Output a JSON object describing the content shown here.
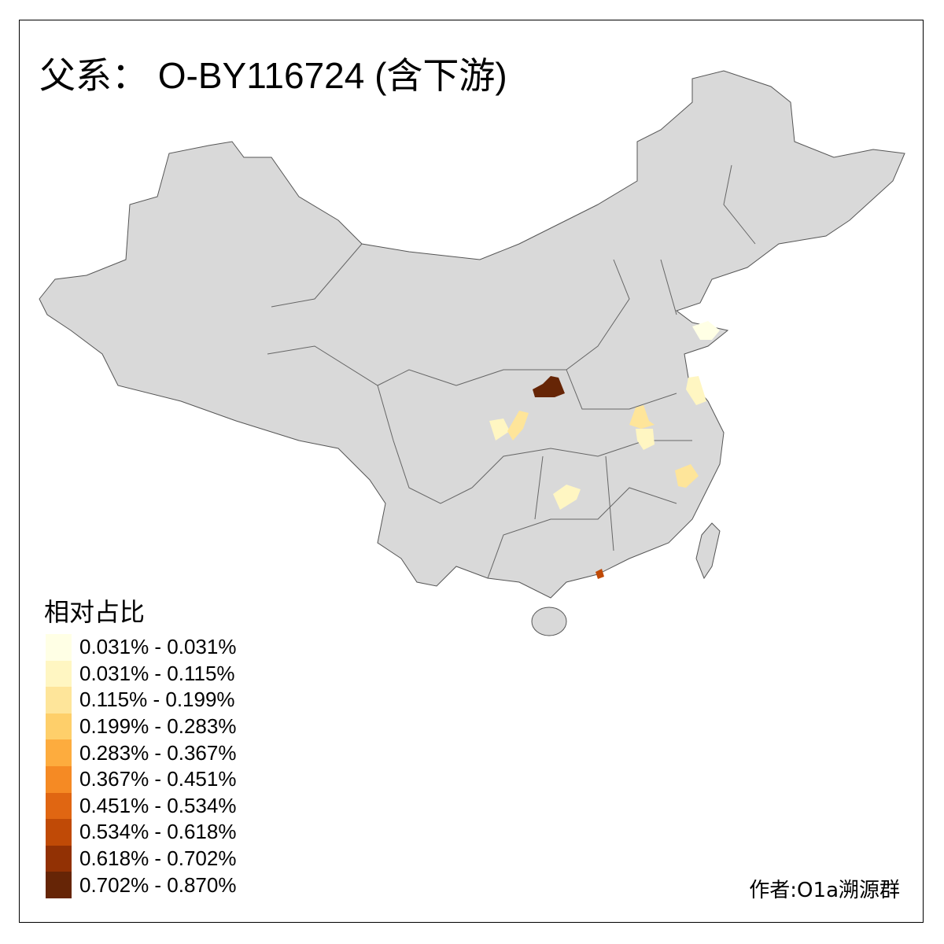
{
  "title": "父系： O-BY116724 (含下游)",
  "legend": {
    "title": "相对占比",
    "items": [
      {
        "label": "0.031% - 0.031%",
        "color": "#FFFFE5"
      },
      {
        "label": "0.031% - 0.115%",
        "color": "#FFF6C2"
      },
      {
        "label": "0.115% - 0.199%",
        "color": "#FEE59A"
      },
      {
        "label": "0.199% - 0.283%",
        "color": "#FECF6A"
      },
      {
        "label": "0.283% - 0.367%",
        "color": "#FDAC3E"
      },
      {
        "label": "0.367% - 0.451%",
        "color": "#F58A24"
      },
      {
        "label": "0.451% - 0.534%",
        "color": "#E06612"
      },
      {
        "label": "0.534% - 0.618%",
        "color": "#C04A06"
      },
      {
        "label": "0.618% - 0.702%",
        "color": "#923104"
      },
      {
        "label": "0.702% - 0.870%",
        "color": "#662506"
      }
    ]
  },
  "author": "作者:O1a溯源群",
  "colors": {
    "base": "#D9D9D9",
    "border": "#666666"
  }
}
